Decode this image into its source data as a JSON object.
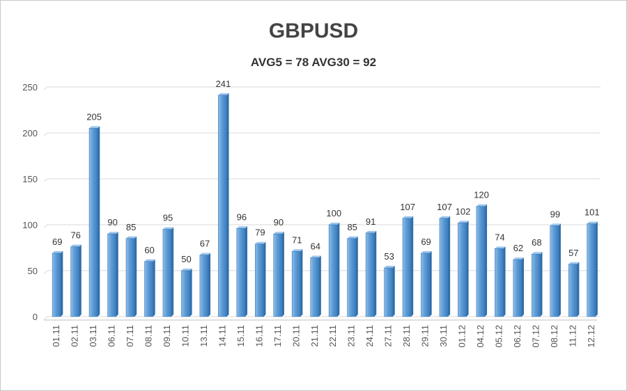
{
  "chart_data": {
    "type": "bar",
    "title": "GBPUSD",
    "subtitle": "AVG5 = 78 AVG30 = 92",
    "categories": [
      "01.11",
      "02.11",
      "03.11",
      "06.11",
      "07.11",
      "08.11",
      "09.11",
      "10.11",
      "13.11",
      "14.11",
      "15.11",
      "16.11",
      "17.11",
      "20.11",
      "21.11",
      "22.11",
      "23.11",
      "24.11",
      "27.11",
      "28.11",
      "29.11",
      "30.11",
      "01.12",
      "04.12",
      "05.12",
      "06.12",
      "07.12",
      "08.12",
      "11.12",
      "12.12"
    ],
    "values": [
      69,
      76,
      205,
      90,
      85,
      60,
      95,
      50,
      67,
      241,
      96,
      79,
      90,
      71,
      64,
      100,
      85,
      91,
      53,
      107,
      69,
      107,
      102,
      120,
      74,
      62,
      68,
      99,
      57,
      101
    ],
    "ylim": [
      0,
      250
    ],
    "yticks": [
      0,
      50,
      100,
      150,
      200,
      250
    ],
    "grid": true,
    "legend": "none",
    "bar_color": "#5b9bd5",
    "bar_dark": "#2f6ea8"
  }
}
